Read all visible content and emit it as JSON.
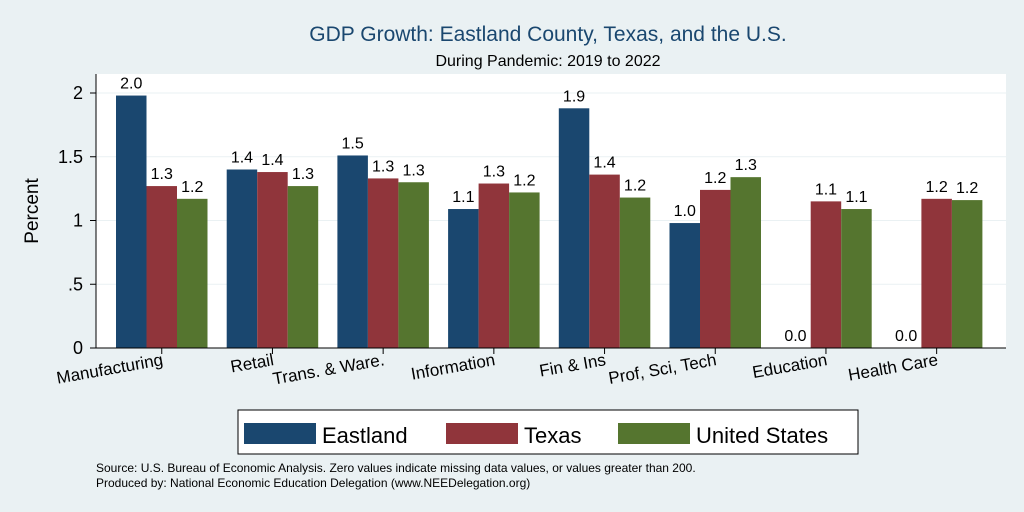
{
  "chart_data": {
    "type": "bar",
    "title": "GDP Growth: Eastland County, Texas, and the U.S.",
    "subtitle": "During Pandemic: 2019 to 2022",
    "xlabel": "",
    "ylabel": "Percent",
    "ylim": [
      0,
      2.1
    ],
    "yticks": [
      {
        "value": 0,
        "label": "0"
      },
      {
        "value": 0.5,
        "label": ".5"
      },
      {
        "value": 1,
        "label": "1"
      },
      {
        "value": 1.5,
        "label": "1.5"
      },
      {
        "value": 2,
        "label": "2"
      }
    ],
    "grid": true,
    "legend_position": "bottom",
    "categories": [
      "Manufacturing",
      "Retail",
      "Trans. & Ware.",
      "Information",
      "Fin & Ins",
      "Prof, Sci, Tech",
      "Education",
      "Health Care"
    ],
    "series": [
      {
        "name": "Eastland",
        "color": "#1a476f",
        "values": [
          1.98,
          1.4,
          1.51,
          1.09,
          1.88,
          0.98,
          0.0,
          0.0
        ],
        "labels": [
          "2.0",
          "1.4",
          "1.5",
          "1.1",
          "1.9",
          "1.0",
          "0.0",
          "0.0"
        ]
      },
      {
        "name": "Texas",
        "color": "#90353b",
        "values": [
          1.27,
          1.38,
          1.33,
          1.29,
          1.36,
          1.24,
          1.15,
          1.17
        ],
        "labels": [
          "1.3",
          "1.4",
          "1.3",
          "1.3",
          "1.4",
          "1.2",
          "1.1",
          "1.2"
        ]
      },
      {
        "name": "United States",
        "color": "#55752f",
        "values": [
          1.17,
          1.27,
          1.3,
          1.22,
          1.18,
          1.34,
          1.09,
          1.16
        ],
        "labels": [
          "1.2",
          "1.3",
          "1.3",
          "1.2",
          "1.2",
          "1.3",
          "1.1",
          "1.2"
        ]
      }
    ],
    "notes": [
      "Source: U.S. Bureau of Economic Analysis. Zero values indicate missing data values, or values greater than 200.",
      "Produced by: National Economic Education Delegation (www.NEEDelegation.org)"
    ],
    "colors": {
      "background": "#eaf1f3",
      "plot_background": "#ffffff",
      "grid": "#eaf1f3",
      "text": "#000000",
      "title": "#1a476f"
    }
  }
}
